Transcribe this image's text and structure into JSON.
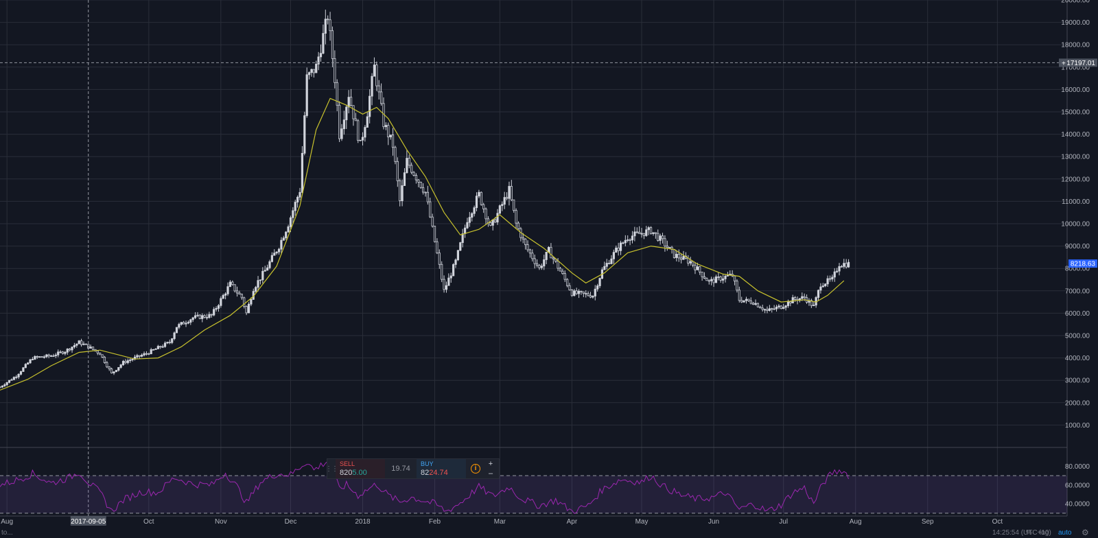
{
  "colors": {
    "background": "#131722",
    "grid": "#2a2e39",
    "candle": "#d1d4dc",
    "moving_average": "#c8c22d",
    "rsi_line": "#9c27b0",
    "rsi_band": "#7e57c2",
    "crosshair": "#9598a1",
    "last_price_badge": "#2962ff"
  },
  "chart_data": [
    {
      "type": "candlestick",
      "x_tick_labels": [
        "Aug",
        "Oct",
        "Nov",
        "Dec",
        "2018",
        "Feb",
        "Mar",
        "Apr",
        "May",
        "Jun",
        "Jul",
        "Aug",
        "Sep",
        "Oct"
      ],
      "y_tick_labels": [
        "1000.00",
        "2000.00",
        "3000.00",
        "4000.00",
        "5000.00",
        "6000.00",
        "7000.00",
        "8000.00",
        "9000.00",
        "10000.00",
        "11000.00",
        "12000.00",
        "13000.00",
        "14000.00",
        "15000.00",
        "16000.00",
        "17000.00",
        "18000.00",
        "19000.00",
        "20000.00"
      ],
      "ylim": [
        0,
        20000
      ],
      "xlim": [
        "2017-07-29",
        "2018-10-31"
      ],
      "grid": true,
      "crosshair": {
        "date_label": "2017-09-05",
        "price_label": "17197.01"
      },
      "last_price_label": "8218.63",
      "moving_average": [
        [
          "2017-07-29",
          2560
        ],
        [
          "2017-08-10",
          3050
        ],
        [
          "2017-08-20",
          3650
        ],
        [
          "2017-09-01",
          4250
        ],
        [
          "2017-09-10",
          4350
        ],
        [
          "2017-09-25",
          3950
        ],
        [
          "2017-10-05",
          4000
        ],
        [
          "2017-10-15",
          4500
        ],
        [
          "2017-10-25",
          5250
        ],
        [
          "2017-11-05",
          5900
        ],
        [
          "2017-11-15",
          6750
        ],
        [
          "2017-11-25",
          8100
        ],
        [
          "2017-12-05",
          10800
        ],
        [
          "2017-12-12",
          14200
        ],
        [
          "2017-12-18",
          15600
        ],
        [
          "2017-12-25",
          15300
        ],
        [
          "2018-01-01",
          14900
        ],
        [
          "2018-01-07",
          15200
        ],
        [
          "2018-01-12",
          14700
        ],
        [
          "2018-01-20",
          13300
        ],
        [
          "2018-01-28",
          12100
        ],
        [
          "2018-02-05",
          10500
        ],
        [
          "2018-02-12",
          9500
        ],
        [
          "2018-02-20",
          9750
        ],
        [
          "2018-03-01",
          10400
        ],
        [
          "2018-03-10",
          9600
        ],
        [
          "2018-03-20",
          8900
        ],
        [
          "2018-04-01",
          7800
        ],
        [
          "2018-04-07",
          7350
        ],
        [
          "2018-04-15",
          7800
        ],
        [
          "2018-04-25",
          8700
        ],
        [
          "2018-05-05",
          9000
        ],
        [
          "2018-05-15",
          8850
        ],
        [
          "2018-05-25",
          8200
        ],
        [
          "2018-06-05",
          7750
        ],
        [
          "2018-06-12",
          7650
        ],
        [
          "2018-06-20",
          7000
        ],
        [
          "2018-06-30",
          6500
        ],
        [
          "2018-07-10",
          6600
        ],
        [
          "2018-07-15",
          6500
        ],
        [
          "2018-07-20",
          6800
        ],
        [
          "2018-07-27",
          7450
        ]
      ],
      "price_path": [
        [
          "2017-07-29",
          2700
        ],
        [
          "2017-08-05",
          3200
        ],
        [
          "2017-08-12",
          4000
        ],
        [
          "2017-08-20",
          4100
        ],
        [
          "2017-08-26",
          4300
        ],
        [
          "2017-09-01",
          4700
        ],
        [
          "2017-09-05",
          4500
        ],
        [
          "2017-09-10",
          4200
        ],
        [
          "2017-09-15",
          3300
        ],
        [
          "2017-09-20",
          3800
        ],
        [
          "2017-09-30",
          4200
        ],
        [
          "2017-10-10",
          4700
        ],
        [
          "2017-10-13",
          5400
        ],
        [
          "2017-10-20",
          5800
        ],
        [
          "2017-10-28",
          5900
        ],
        [
          "2017-11-05",
          7300
        ],
        [
          "2017-11-10",
          6700
        ],
        [
          "2017-11-12",
          6000
        ],
        [
          "2017-11-15",
          7100
        ],
        [
          "2017-11-20",
          7900
        ],
        [
          "2017-11-26",
          9000
        ],
        [
          "2017-11-30",
          10000
        ],
        [
          "2017-12-05",
          11500
        ],
        [
          "2017-12-08",
          16500
        ],
        [
          "2017-12-12",
          17000
        ],
        [
          "2017-12-17",
          19300
        ],
        [
          "2017-12-20",
          16500
        ],
        [
          "2017-12-22",
          14000
        ],
        [
          "2017-12-26",
          15800
        ],
        [
          "2017-12-31",
          13500
        ],
        [
          "2018-01-03",
          15000
        ],
        [
          "2018-01-06",
          17000
        ],
        [
          "2018-01-10",
          14500
        ],
        [
          "2018-01-14",
          13500
        ],
        [
          "2018-01-17",
          11000
        ],
        [
          "2018-01-20",
          12800
        ],
        [
          "2018-01-28",
          11400
        ],
        [
          "2018-02-01",
          9200
        ],
        [
          "2018-02-05",
          7000
        ],
        [
          "2018-02-10",
          8300
        ],
        [
          "2018-02-15",
          10200
        ],
        [
          "2018-02-20",
          11300
        ],
        [
          "2018-02-25",
          9800
        ],
        [
          "2018-03-05",
          11500
        ],
        [
          "2018-03-08",
          10000
        ],
        [
          "2018-03-12",
          9000
        ],
        [
          "2018-03-18",
          8000
        ],
        [
          "2018-03-22",
          8800
        ],
        [
          "2018-03-28",
          7700
        ],
        [
          "2018-04-01",
          6900
        ],
        [
          "2018-04-10",
          6800
        ],
        [
          "2018-04-14",
          7900
        ],
        [
          "2018-04-20",
          8800
        ],
        [
          "2018-04-25",
          9400
        ],
        [
          "2018-05-05",
          9700
        ],
        [
          "2018-05-10",
          9200
        ],
        [
          "2018-05-15",
          8600
        ],
        [
          "2018-05-22",
          8300
        ],
        [
          "2018-05-30",
          7400
        ],
        [
          "2018-06-05",
          7600
        ],
        [
          "2018-06-09",
          7700
        ],
        [
          "2018-06-12",
          6600
        ],
        [
          "2018-06-18",
          6500
        ],
        [
          "2018-06-24",
          6100
        ],
        [
          "2018-06-30",
          6300
        ],
        [
          "2018-07-05",
          6600
        ],
        [
          "2018-07-10",
          6700
        ],
        [
          "2018-07-14",
          6300
        ],
        [
          "2018-07-17",
          7300
        ],
        [
          "2018-07-22",
          7500
        ],
        [
          "2018-07-25",
          8200
        ],
        [
          "2018-07-29",
          8200
        ]
      ]
    },
    {
      "type": "line",
      "y_tick_labels": [
        "40.0000",
        "60.0000",
        "80.0000"
      ],
      "ylim": [
        27,
        100
      ],
      "band": [
        30,
        70
      ],
      "rsi_path": [
        [
          "2017-07-29",
          60
        ],
        [
          "2017-08-05",
          65
        ],
        [
          "2017-08-12",
          72
        ],
        [
          "2017-08-20",
          62
        ],
        [
          "2017-08-28",
          68
        ],
        [
          "2017-09-01",
          74
        ],
        [
          "2017-09-05",
          63
        ],
        [
          "2017-09-10",
          52
        ],
        [
          "2017-09-15",
          32
        ],
        [
          "2017-09-20",
          44
        ],
        [
          "2017-09-28",
          53
        ],
        [
          "2017-10-05",
          52
        ],
        [
          "2017-10-12",
          68
        ],
        [
          "2017-10-20",
          61
        ],
        [
          "2017-10-28",
          60
        ],
        [
          "2017-11-03",
          73
        ],
        [
          "2017-11-08",
          58
        ],
        [
          "2017-11-12",
          41
        ],
        [
          "2017-11-18",
          63
        ],
        [
          "2017-11-25",
          72
        ],
        [
          "2017-12-01",
          71
        ],
        [
          "2017-12-08",
          85
        ],
        [
          "2017-12-11",
          76
        ],
        [
          "2017-12-17",
          86
        ],
        [
          "2017-12-22",
          56
        ],
        [
          "2017-12-25",
          60
        ],
        [
          "2017-12-30",
          49
        ],
        [
          "2018-01-07",
          61
        ],
        [
          "2018-01-12",
          49
        ],
        [
          "2018-01-17",
          42
        ],
        [
          "2018-01-22",
          47
        ],
        [
          "2018-02-01",
          40
        ],
        [
          "2018-02-06",
          32
        ],
        [
          "2018-02-12",
          41
        ],
        [
          "2018-02-20",
          58
        ],
        [
          "2018-02-26",
          48
        ],
        [
          "2018-03-05",
          58
        ],
        [
          "2018-03-10",
          46
        ],
        [
          "2018-03-18",
          38
        ],
        [
          "2018-03-25",
          44
        ],
        [
          "2018-04-01",
          32
        ],
        [
          "2018-04-08",
          38
        ],
        [
          "2018-04-14",
          55
        ],
        [
          "2018-04-22",
          66
        ],
        [
          "2018-05-01",
          63
        ],
        [
          "2018-05-05",
          70
        ],
        [
          "2018-05-10",
          59
        ],
        [
          "2018-05-18",
          49
        ],
        [
          "2018-05-25",
          45
        ],
        [
          "2018-06-01",
          47
        ],
        [
          "2018-06-06",
          52
        ],
        [
          "2018-06-12",
          34
        ],
        [
          "2018-06-18",
          40
        ],
        [
          "2018-06-24",
          32
        ],
        [
          "2018-06-30",
          39
        ],
        [
          "2018-07-05",
          52
        ],
        [
          "2018-07-10",
          57
        ],
        [
          "2018-07-14",
          40
        ],
        [
          "2018-07-18",
          62
        ],
        [
          "2018-07-22",
          73
        ],
        [
          "2018-07-26",
          76
        ],
        [
          "2018-07-29",
          70
        ]
      ]
    }
  ],
  "trade_widget": {
    "sell_label": "SELL",
    "sell_price_prefix": "820",
    "sell_price_highlight": "5.00",
    "spread": "19.74",
    "buy_label": "BUY",
    "buy_price_prefix": "82",
    "buy_price_highlight": "24.74",
    "info_icon": "info-icon",
    "plus": "+",
    "minus": "–"
  },
  "bottom_bar": {
    "left_text": "to...",
    "clock": "14:25:54 (UTC+10)",
    "percent_label": "%",
    "log_label": "log",
    "auto_label": "auto",
    "settings_icon": "gear-icon"
  }
}
